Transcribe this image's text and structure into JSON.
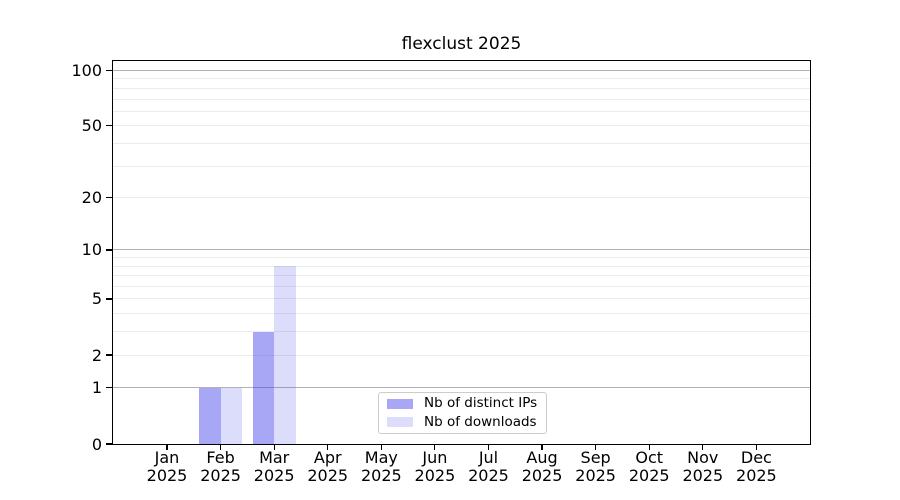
{
  "title": "flexclust 2025",
  "chart_data": {
    "type": "bar",
    "title": "flexclust 2025",
    "categories": [
      "Jan 2025",
      "Feb 2025",
      "Mar 2025",
      "Apr 2025",
      "May 2025",
      "Jun 2025",
      "Jul 2025",
      "Aug 2025",
      "Sep 2025",
      "Oct 2025",
      "Nov 2025",
      "Dec 2025"
    ],
    "series": [
      {
        "name": "Nb of distinct IPs",
        "values": [
          0,
          1,
          3,
          0,
          0,
          0,
          0,
          0,
          0,
          0,
          0,
          0
        ],
        "color": "rgba(60,60,235,0.45)"
      },
      {
        "name": "Nb of downloads",
        "values": [
          0,
          1,
          8,
          0,
          0,
          0,
          0,
          0,
          0,
          0,
          0,
          0
        ],
        "color": "rgba(60,60,235,0.18)"
      }
    ],
    "xlabel": "",
    "ylabel": "",
    "y_axis": {
      "scale": "log1p",
      "tick_values": [
        0,
        1,
        2,
        5,
        10,
        20,
        50,
        100
      ],
      "ylim": [
        0,
        112
      ]
    },
    "grid": {
      "on": true,
      "major_lines": [
        1,
        10,
        100
      ],
      "minor_lines": [
        2,
        3,
        4,
        5,
        6,
        7,
        8,
        9,
        20,
        30,
        40,
        50,
        60,
        70,
        80,
        90
      ],
      "major_color": "#b2b2b2",
      "minor_color": "#ebebeb"
    },
    "legend_position": "lower center"
  },
  "colors": {
    "background": "#ffffff",
    "axis": "#000000",
    "text": "#000000",
    "legend_border": "#cccccc",
    "bar_distinct_ips": "rgba(60,60,235,0.45)",
    "bar_downloads": "rgba(60,60,235,0.18)"
  }
}
